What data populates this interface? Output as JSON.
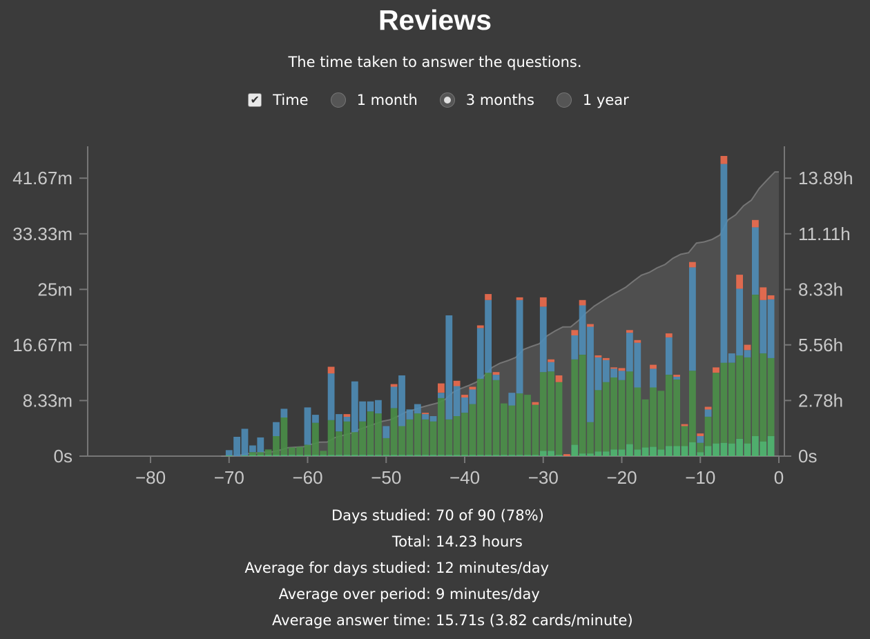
{
  "title": "Reviews",
  "subtitle": "The time taken to answer the questions.",
  "controls": {
    "time_label": "Time",
    "time_checked": true,
    "range_options": [
      "1 month",
      "3 months",
      "1 year"
    ],
    "selected_range": "3 months"
  },
  "stats": [
    {
      "label": "Days studied:",
      "value": "70 of 90 (78%)"
    },
    {
      "label": "Total:",
      "value": "14.23 hours"
    },
    {
      "label": "Average for days studied:",
      "value": "12 minutes/day"
    },
    {
      "label": "Average over period:",
      "value": "9 minutes/day"
    },
    {
      "label": "Average answer time:",
      "value": "15.71s (3.82 cards/minute)"
    }
  ],
  "colors": {
    "background": "#3b3b3b",
    "mature": "#4a8f48",
    "young": "#4f8db7",
    "relearn": "#ee6d4f",
    "learn": "#4fb870",
    "cumulative": "#8a8a8a"
  },
  "chart_data": {
    "type": "bar",
    "stacked": true,
    "x_domain": [
      -88,
      0
    ],
    "xticks": [
      -80,
      -70,
      -60,
      -50,
      -40,
      -30,
      -20,
      -10,
      0
    ],
    "y_left_ticks": [
      "0s",
      "8.33m",
      "16.67m",
      "25m",
      "33.33m",
      "41.67m"
    ],
    "y_left_tick_values": [
      0,
      8.33,
      16.67,
      25,
      33.33,
      41.67
    ],
    "y_left_max": 45,
    "y_right_ticks": [
      "0s",
      "2.78h",
      "5.56h",
      "8.33h",
      "11.11h",
      "13.89h"
    ],
    "y_right_tick_values": [
      0,
      2.78,
      5.56,
      8.33,
      11.11,
      13.89
    ],
    "y_right_max": 15,
    "series_order": [
      "learn",
      "mature",
      "young",
      "relearn"
    ],
    "days": [
      {
        "x": -70,
        "learn": 0.1,
        "mature": 0,
        "young": 0.8,
        "relearn": 0
      },
      {
        "x": -69,
        "learn": 0,
        "mature": 0,
        "young": 2.9,
        "relearn": 0
      },
      {
        "x": -68,
        "learn": 0.1,
        "mature": 0,
        "young": 4.0,
        "relearn": 0
      },
      {
        "x": -67,
        "learn": 0.2,
        "mature": 0.4,
        "young": 1.0,
        "relearn": 0
      },
      {
        "x": -66,
        "learn": 0.2,
        "mature": 0.4,
        "young": 2.2,
        "relearn": 0
      },
      {
        "x": -65,
        "learn": 0.2,
        "mature": 0.8,
        "young": 0,
        "relearn": 0
      },
      {
        "x": -64,
        "learn": 0.2,
        "mature": 2.8,
        "young": 2.1,
        "relearn": 0
      },
      {
        "x": -63,
        "learn": 0.2,
        "mature": 5.6,
        "young": 1.3,
        "relearn": 0
      },
      {
        "x": -62,
        "learn": 0.2,
        "mature": 1.1,
        "young": 0,
        "relearn": 0
      },
      {
        "x": -61,
        "learn": 0.2,
        "mature": 1.2,
        "young": 0,
        "relearn": 0
      },
      {
        "x": -60,
        "learn": 0.2,
        "mature": 1.5,
        "young": 5.6,
        "relearn": 0
      },
      {
        "x": -59,
        "learn": 0.2,
        "mature": 4.8,
        "young": 1.2,
        "relearn": 0
      },
      {
        "x": -58,
        "learn": 0.2,
        "mature": 0.6,
        "young": 0,
        "relearn": 0
      },
      {
        "x": -57,
        "learn": 0.2,
        "mature": 5.2,
        "young": 7.0,
        "relearn": 1.0
      },
      {
        "x": -56,
        "learn": 0.2,
        "mature": 3.5,
        "young": 2.6,
        "relearn": 0
      },
      {
        "x": -55,
        "learn": 0.2,
        "mature": 5.0,
        "young": 0.7,
        "relearn": 0.4
      },
      {
        "x": -54,
        "learn": 0.2,
        "mature": 3.4,
        "young": 7.6,
        "relearn": 0
      },
      {
        "x": -53,
        "learn": 0.2,
        "mature": 5.0,
        "young": 3.0,
        "relearn": 0
      },
      {
        "x": -52,
        "learn": 0.2,
        "mature": 6.5,
        "young": 1.5,
        "relearn": 0
      },
      {
        "x": -51,
        "learn": 0.2,
        "mature": 6.2,
        "young": 2.0,
        "relearn": 0
      },
      {
        "x": -50,
        "learn": 0.2,
        "mature": 2.5,
        "young": 1.8,
        "relearn": 0
      },
      {
        "x": -49,
        "learn": 0.2,
        "mature": 7.0,
        "young": 3.2,
        "relearn": 0.4
      },
      {
        "x": -48,
        "learn": 0.2,
        "mature": 4.3,
        "young": 7.6,
        "relearn": 0
      },
      {
        "x": -47,
        "learn": 0.2,
        "mature": 5.3,
        "young": 1.5,
        "relearn": 0
      },
      {
        "x": -46,
        "learn": 0.2,
        "mature": 6.2,
        "young": 1.4,
        "relearn": 0
      },
      {
        "x": -45,
        "learn": 0.2,
        "mature": 5.3,
        "young": 0.8,
        "relearn": 0.2
      },
      {
        "x": -44,
        "learn": 0.2,
        "mature": 5.0,
        "young": 0.8,
        "relearn": 0
      },
      {
        "x": -43,
        "learn": 0.2,
        "mature": 8.5,
        "young": 0.8,
        "relearn": 1.4
      },
      {
        "x": -42,
        "learn": 0.2,
        "mature": 5.3,
        "young": 15.6,
        "relearn": 0
      },
      {
        "x": -41,
        "learn": 0.2,
        "mature": 5.8,
        "young": 4.5,
        "relearn": 0.8
      },
      {
        "x": -40,
        "learn": 0.2,
        "mature": 6.3,
        "young": 2.3,
        "relearn": 0.4
      },
      {
        "x": -39,
        "learn": 0.2,
        "mature": 7.6,
        "young": 2.2,
        "relearn": 0.4
      },
      {
        "x": -38,
        "learn": 0.2,
        "mature": 11.4,
        "young": 7.6,
        "relearn": 0.4
      },
      {
        "x": -37,
        "learn": 0.2,
        "mature": 12.3,
        "young": 10.9,
        "relearn": 0.9
      },
      {
        "x": -36,
        "learn": 0.2,
        "mature": 11.2,
        "young": 0.8,
        "relearn": 0.4
      },
      {
        "x": -35,
        "learn": 0.2,
        "mature": 7.7,
        "young": 0,
        "relearn": 0
      },
      {
        "x": -34,
        "learn": 0.2,
        "mature": 7.4,
        "young": 1.9,
        "relearn": 0
      },
      {
        "x": -33,
        "learn": 0.2,
        "mature": 9.2,
        "young": 14.0,
        "relearn": 0.4
      },
      {
        "x": -32,
        "learn": 0.2,
        "mature": 9.0,
        "young": 0,
        "relearn": 0
      },
      {
        "x": -31,
        "learn": 0.2,
        "mature": 7.5,
        "young": 0,
        "relearn": 0.4
      },
      {
        "x": -30,
        "learn": 0.8,
        "mature": 11.8,
        "young": 9.8,
        "relearn": 1.4
      },
      {
        "x": -29,
        "learn": 0.8,
        "mature": 11.9,
        "young": 1.4,
        "relearn": 0.4
      },
      {
        "x": -28,
        "learn": 0.2,
        "mature": 10.9,
        "young": 0,
        "relearn": 1.0
      },
      {
        "x": -27,
        "learn": 0,
        "mature": 0,
        "young": 0,
        "relearn": 0.3
      },
      {
        "x": -26,
        "learn": 1.7,
        "mature": 12.8,
        "young": 3.6,
        "relearn": 0.8
      },
      {
        "x": -25,
        "learn": 0.4,
        "mature": 14.8,
        "young": 7.4,
        "relearn": 0.8
      },
      {
        "x": -24,
        "learn": 0.4,
        "mature": 4.7,
        "young": 14.3,
        "relearn": 0.4
      },
      {
        "x": -23,
        "learn": 0.7,
        "mature": 9.2,
        "young": 4.9,
        "relearn": 0.3
      },
      {
        "x": -22,
        "learn": 0.7,
        "mature": 10.4,
        "young": 3.3,
        "relearn": 0.3
      },
      {
        "x": -21,
        "learn": 1.0,
        "mature": 10.8,
        "young": 1.3,
        "relearn": 0.2
      },
      {
        "x": -20,
        "learn": 1.0,
        "mature": 10.4,
        "young": 1.4,
        "relearn": 0.4
      },
      {
        "x": -19,
        "learn": 1.8,
        "mature": 10.9,
        "young": 5.8,
        "relearn": 0.4
      },
      {
        "x": -18,
        "learn": 1.0,
        "mature": 9.3,
        "young": 6.7,
        "relearn": 0.4
      },
      {
        "x": -17,
        "learn": 1.3,
        "mature": 7.2,
        "young": 0,
        "relearn": 0
      },
      {
        "x": -16,
        "learn": 1.4,
        "mature": 8.9,
        "young": 2.8,
        "relearn": 0.6
      },
      {
        "x": -15,
        "learn": 1.0,
        "mature": 8.8,
        "young": 0,
        "relearn": 0
      },
      {
        "x": -14,
        "learn": 1.5,
        "mature": 10.7,
        "young": 5.6,
        "relearn": 0.6
      },
      {
        "x": -13,
        "learn": 1.5,
        "mature": 10.0,
        "young": 0.4,
        "relearn": 0.3
      },
      {
        "x": -12,
        "learn": 1.5,
        "mature": 3.0,
        "young": 0,
        "relearn": 0.3
      },
      {
        "x": -11,
        "learn": 2.1,
        "mature": 10.7,
        "young": 15.5,
        "relearn": 0.8
      },
      {
        "x": -10,
        "learn": 0.6,
        "mature": 1.4,
        "young": 1.0,
        "relearn": 0.4
      },
      {
        "x": -9,
        "learn": 1.5,
        "mature": 4.4,
        "young": 1.1,
        "relearn": 0.4
      },
      {
        "x": -8,
        "learn": 1.9,
        "mature": 10.6,
        "young": 0,
        "relearn": 0.8
      },
      {
        "x": -7,
        "learn": 2.0,
        "mature": 12.0,
        "young": 29.8,
        "relearn": 1.2
      },
      {
        "x": -6,
        "learn": 1.9,
        "mature": 12.1,
        "young": 1.4,
        "relearn": 0
      },
      {
        "x": -5,
        "learn": 2.6,
        "mature": 12.5,
        "young": 10.0,
        "relearn": 2.1
      },
      {
        "x": -4,
        "learn": 1.9,
        "mature": 12.9,
        "young": 1.1,
        "relearn": 0.8
      },
      {
        "x": -3,
        "learn": 3.0,
        "mature": 21.2,
        "young": 10.1,
        "relearn": 1.1
      },
      {
        "x": -2,
        "learn": 2.2,
        "mature": 13.2,
        "young": 8.0,
        "relearn": 1.9
      },
      {
        "x": -1,
        "learn": 3.0,
        "mature": 11.7,
        "young": 8.8,
        "relearn": 0.6
      }
    ]
  }
}
